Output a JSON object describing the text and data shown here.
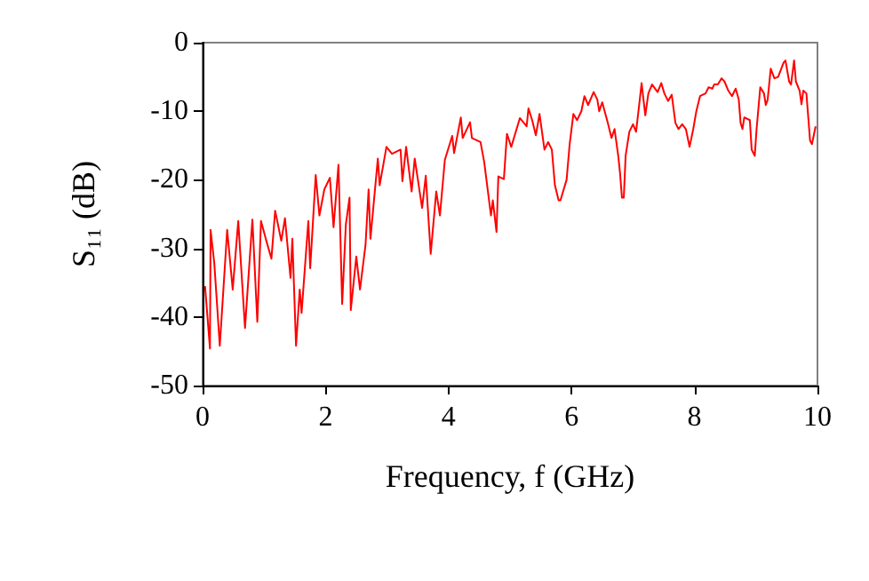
{
  "chart_data": {
    "type": "line",
    "xlabel": "Frequency, f (GHz)",
    "ylabel": "S₁₁ (dB)",
    "xlim": [
      0,
      10
    ],
    "xticks": [
      0,
      2,
      4,
      6,
      8,
      10
    ],
    "ylim": [
      -50,
      0
    ],
    "yticks": [
      -50,
      -40,
      -30,
      -20,
      -10,
      0
    ],
    "marker": "none",
    "line_style": "solid",
    "series": [
      {
        "color": "#ff0000",
        "x": [
          0.04,
          0.12,
          0.13,
          0.19,
          0.28,
          0.4,
          0.49,
          0.58,
          0.69,
          0.81,
          0.89,
          0.95,
          1.04,
          1.12,
          1.18,
          1.28,
          1.34,
          1.43,
          1.46,
          1.52,
          1.58,
          1.61,
          1.72,
          1.75,
          1.84,
          1.9,
          1.98,
          2.07,
          2.13,
          2.21,
          2.27,
          2.33,
          2.39,
          2.41,
          2.5,
          2.56,
          2.65,
          2.7,
          2.73,
          2.85,
          2.88,
          2.99,
          3.08,
          3.22,
          3.25,
          3.31,
          3.4,
          3.45,
          3.57,
          3.63,
          3.71,
          3.8,
          3.86,
          3.94,
          4.06,
          4.09,
          4.2,
          4.23,
          4.35,
          4.38,
          4.52,
          4.58,
          4.69,
          4.72,
          4.78,
          4.81,
          4.9,
          4.95,
          5.02,
          5.16,
          5.27,
          5.3,
          5.36,
          5.42,
          5.48,
          5.56,
          5.62,
          5.68,
          5.73,
          5.79,
          5.82,
          5.92,
          5.97,
          6.03,
          6.09,
          6.16,
          6.21,
          6.27,
          6.36,
          6.42,
          6.45,
          6.5,
          6.59,
          6.65,
          6.7,
          6.76,
          6.79,
          6.82,
          6.85,
          6.88,
          6.94,
          7.0,
          7.05,
          7.11,
          7.14,
          7.2,
          7.25,
          7.31,
          7.4,
          7.46,
          7.51,
          7.57,
          7.63,
          7.69,
          7.74,
          7.8,
          7.86,
          7.92,
          7.98,
          8.03,
          8.09,
          8.18,
          8.23,
          8.29,
          8.32,
          8.38,
          8.44,
          8.49,
          8.55,
          8.61,
          8.67,
          8.72,
          8.75,
          8.78,
          8.81,
          8.9,
          8.93,
          8.98,
          9.01,
          9.07,
          9.13,
          9.16,
          9.19,
          9.24,
          9.3,
          9.36,
          9.45,
          9.48,
          9.54,
          9.57,
          9.62,
          9.65,
          9.71,
          9.74,
          9.77,
          9.82,
          9.88,
          9.91,
          9.97
        ],
        "values": [
          -35.5,
          -44.6,
          -27.3,
          -32.1,
          -44.2,
          -27.3,
          -36.0,
          -26.0,
          -41.6,
          -25.8,
          -40.7,
          -26.0,
          -29.0,
          -31.5,
          -24.5,
          -28.9,
          -25.6,
          -34.3,
          -28.6,
          -44.2,
          -36.0,
          -39.4,
          -26.0,
          -32.9,
          -19.3,
          -25.2,
          -21.4,
          -19.7,
          -26.9,
          -17.8,
          -38.1,
          -26.5,
          -22.6,
          -39.0,
          -31.2,
          -36.0,
          -29.5,
          -21.4,
          -28.6,
          -16.9,
          -20.8,
          -15.2,
          -16.2,
          -15.6,
          -20.2,
          -15.2,
          -21.7,
          -16.9,
          -24.1,
          -19.4,
          -30.8,
          -21.7,
          -25.2,
          -17.1,
          -13.6,
          -16.1,
          -10.9,
          -13.9,
          -11.6,
          -13.9,
          -14.5,
          -17.4,
          -25.2,
          -23.0,
          -27.6,
          -19.5,
          -19.9,
          -13.3,
          -15.2,
          -11.0,
          -12.2,
          -9.6,
          -11.3,
          -13.5,
          -10.4,
          -15.6,
          -14.5,
          -15.6,
          -20.8,
          -23.0,
          -23.0,
          -20.0,
          -14.8,
          -10.4,
          -11.3,
          -10.0,
          -7.8,
          -9.1,
          -7.2,
          -8.3,
          -10.0,
          -8.7,
          -11.7,
          -13.9,
          -12.6,
          -16.5,
          -19.1,
          -22.6,
          -22.6,
          -16.5,
          -13.0,
          -11.9,
          -13.0,
          -8.3,
          -5.9,
          -10.6,
          -7.4,
          -6.1,
          -7.2,
          -5.9,
          -7.4,
          -8.5,
          -7.6,
          -11.7,
          -12.6,
          -11.9,
          -12.6,
          -15.2,
          -12.6,
          -10.0,
          -7.8,
          -7.4,
          -6.5,
          -6.7,
          -6.1,
          -6.1,
          -5.2,
          -5.7,
          -7.0,
          -7.8,
          -6.7,
          -8.3,
          -11.7,
          -12.6,
          -10.9,
          -11.3,
          -15.6,
          -16.5,
          -12.6,
          -6.5,
          -7.4,
          -9.1,
          -8.3,
          -3.8,
          -5.2,
          -5.0,
          -2.9,
          -2.6,
          -5.7,
          -6.1,
          -2.6,
          -5.7,
          -7.0,
          -9.0,
          -7.0,
          -7.4,
          -14.3,
          -14.8,
          -12.2
        ]
      }
    ]
  }
}
